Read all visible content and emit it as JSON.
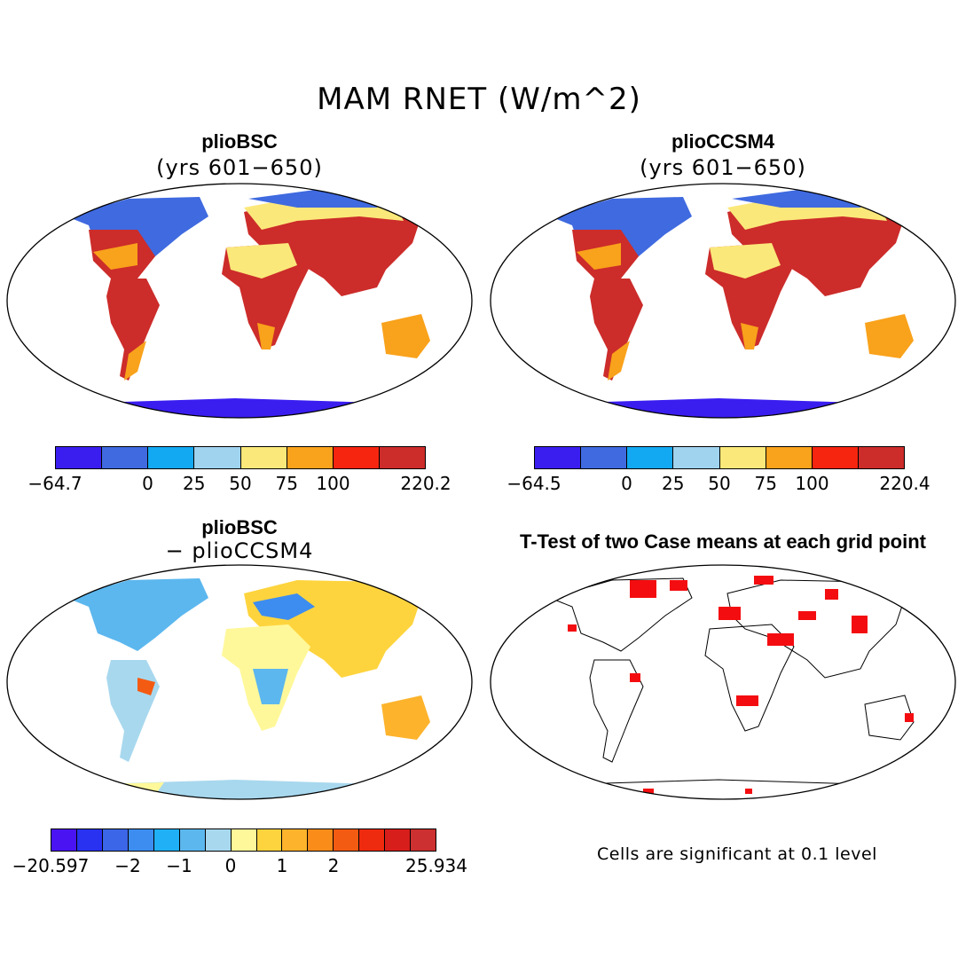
{
  "title": "MAM RNET (W/m^2)",
  "panels": [
    {
      "name": "plioBSC",
      "subtitle": "(yrs 601−650)"
    },
    {
      "name": "plioCCSM4",
      "subtitle": "(yrs 601−650)"
    },
    {
      "name": "plioBSC",
      "subtitle": "− plioCCSM4"
    },
    {
      "name": "T-Test of two Case means at each grid point",
      "subtitle": ""
    }
  ],
  "colorbars": {
    "abs1": {
      "colors": [
        "#3a1ef0",
        "#3f6ae0",
        "#13a8f2",
        "#9fd3ee",
        "#fbe87a",
        "#f9a21b",
        "#f6250f",
        "#cc2c2a"
      ],
      "labels": [
        "−64.7",
        "0",
        "25",
        "50",
        "75",
        "100",
        "220.2"
      ]
    },
    "abs2": {
      "colors": [
        "#3a1ef0",
        "#3f6ae0",
        "#13a8f2",
        "#9fd3ee",
        "#fbe87a",
        "#f9a21b",
        "#f6250f",
        "#cc2c2a"
      ],
      "labels": [
        "−64.5",
        "0",
        "25",
        "50",
        "75",
        "100",
        "220.4"
      ]
    },
    "diff": {
      "colors": [
        "#4a14f2",
        "#2832f0",
        "#3c66e8",
        "#3d8df0",
        "#1fb0f5",
        "#5cb7ee",
        "#a8d8ee",
        "#fff89a",
        "#fed43e",
        "#fdb32c",
        "#fa8c1a",
        "#f45b12",
        "#ee2b0e",
        "#d81e1b",
        "#cc3030"
      ],
      "labels": [
        "−20.597",
        "−2",
        "−1",
        "0",
        "1",
        "2",
        "25.934"
      ]
    }
  },
  "note": "Cells are significant at 0.1 level"
}
